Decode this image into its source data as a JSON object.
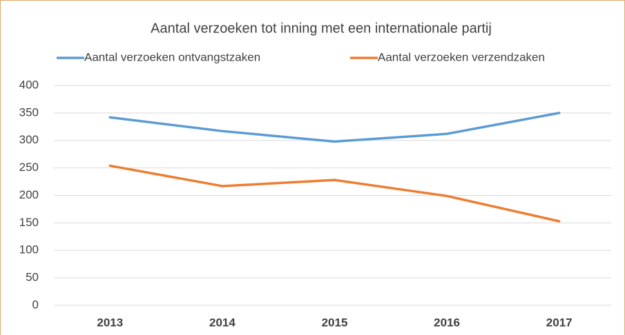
{
  "chart_data": {
    "type": "line",
    "title": "Aantal verzoeken tot inning met een internationale partij",
    "categories": [
      "2013",
      "2014",
      "2015",
      "2016",
      "2017"
    ],
    "series": [
      {
        "name": "Aantal verzoeken ontvangstzaken",
        "color": "#5b9bd5",
        "values": [
          342,
          317,
          298,
          312,
          350
        ]
      },
      {
        "name": "Aantal verzoeken verzendzaken",
        "color": "#ed7d31",
        "values": [
          254,
          217,
          228,
          199,
          153
        ]
      }
    ],
    "ylim": [
      0,
      400
    ],
    "yticks": [
      0,
      50,
      100,
      150,
      200,
      250,
      300,
      350,
      400
    ],
    "grid": true,
    "legend": "top"
  }
}
